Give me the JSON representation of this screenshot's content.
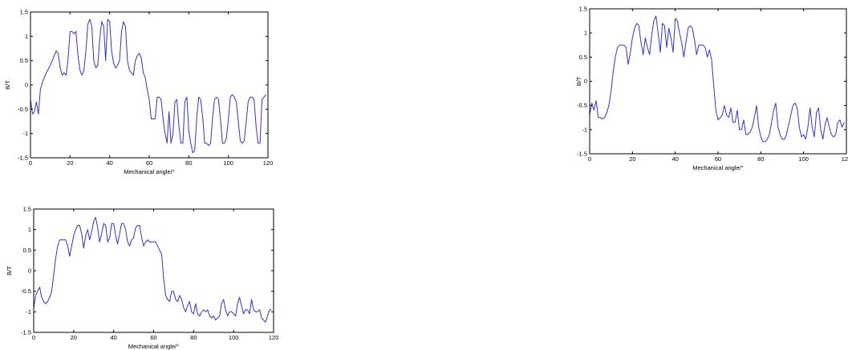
{
  "chart_data": [
    {
      "type": "line",
      "xlabel": "Mechanical angle/°",
      "ylabel": "B/T",
      "xlim": [
        0,
        120
      ],
      "ylim": [
        -1.5,
        1.5
      ],
      "xticks": [
        0,
        20,
        40,
        60,
        80,
        100,
        120
      ],
      "yticks": [
        -1.5,
        -1,
        -0.5,
        0,
        0.5,
        1,
        1.5
      ],
      "grid": false,
      "color": "#3333cc",
      "series": [
        {
          "x": [
            0,
            1,
            2,
            3,
            4,
            5,
            6,
            7,
            8,
            10,
            12,
            13,
            14,
            15,
            16,
            17,
            18,
            19,
            20,
            21,
            22,
            23,
            24,
            25,
            26,
            27,
            28,
            29,
            30,
            31,
            32,
            33,
            34,
            35,
            36,
            37,
            38,
            39,
            40,
            41,
            42,
            43,
            44,
            45,
            46,
            47,
            48,
            49,
            50,
            51,
            52,
            53,
            54,
            55,
            56,
            57,
            58,
            59,
            60,
            61,
            62,
            63,
            64,
            65,
            66,
            67,
            68,
            69,
            70,
            71,
            72,
            73,
            74,
            75,
            76,
            77,
            78,
            79,
            80,
            81,
            82,
            83,
            84,
            85,
            86,
            87,
            88,
            89,
            90,
            91,
            92,
            93,
            94,
            95,
            96,
            97,
            98,
            99,
            100,
            101,
            102,
            103,
            104,
            105,
            106,
            107,
            108,
            109,
            110,
            111,
            112,
            113,
            114,
            115,
            116,
            117,
            118,
            119
          ],
          "y": [
            -0.3,
            -0.6,
            -0.55,
            -0.35,
            -0.6,
            -0.1,
            0.05,
            0.15,
            0.25,
            0.4,
            0.6,
            0.7,
            0.65,
            0.35,
            0.2,
            0.25,
            0.2,
            0.55,
            1.1,
            1.1,
            1.05,
            1.1,
            0.6,
            0.3,
            0.2,
            0.3,
            0.7,
            1.25,
            1.35,
            1.2,
            0.5,
            0.35,
            0.4,
            0.95,
            1.3,
            1.2,
            0.5,
            1.35,
            1.3,
            0.7,
            0.45,
            0.35,
            0.4,
            0.5,
            1.1,
            1.3,
            1.2,
            0.5,
            0.3,
            0.25,
            0.2,
            0.5,
            0.6,
            0.65,
            0.55,
            0.25,
            0.15,
            -0.1,
            -0.3,
            -0.7,
            -0.7,
            -0.7,
            -0.25,
            -0.25,
            -0.3,
            -0.7,
            -1.0,
            -1.2,
            -0.55,
            -1.2,
            -1.0,
            -0.35,
            -0.3,
            -0.85,
            -1.2,
            -1.2,
            -0.35,
            -0.25,
            -0.95,
            -1.2,
            -1.4,
            -1.35,
            -0.7,
            -0.25,
            -0.3,
            -0.65,
            -1.2,
            -1.2,
            -1.25,
            -1.2,
            -0.7,
            -0.3,
            -0.25,
            -0.3,
            -0.7,
            -1.2,
            -1.2,
            -1.1,
            -0.7,
            -0.25,
            -0.2,
            -0.25,
            -0.35,
            -0.75,
            -1.15,
            -1.2,
            -1.15,
            -0.75,
            -0.35,
            -0.25,
            -0.25,
            -0.3,
            -0.85,
            -1.2,
            -1.2,
            -0.3,
            -0.25,
            -0.2
          ]
        }
      ]
    },
    {
      "type": "line",
      "xlabel": "Mechanical angle/°",
      "ylabel": "B/T",
      "xlim": [
        0,
        120
      ],
      "ylim": [
        -1.5,
        1.5
      ],
      "xticks": [
        0,
        20,
        40,
        60,
        80,
        100,
        120
      ],
      "yticks": [
        -1.5,
        -1,
        -0.5,
        0,
        0.5,
        1,
        1.5
      ],
      "grid": false,
      "color": "#3333cc",
      "series": [
        {
          "x": [
            0,
            1,
            2,
            3,
            4,
            5,
            6,
            7,
            8,
            9,
            10,
            11,
            12,
            13,
            14,
            15,
            16,
            17,
            18,
            19,
            20,
            21,
            22,
            23,
            24,
            25,
            26,
            27,
            28,
            29,
            30,
            31,
            32,
            33,
            34,
            35,
            36,
            37,
            38,
            39,
            40,
            41,
            42,
            43,
            44,
            45,
            46,
            47,
            48,
            49,
            50,
            51,
            52,
            53,
            54,
            55,
            56,
            57,
            58,
            59,
            60,
            61,
            62,
            63,
            64,
            65,
            66,
            67,
            68,
            69,
            70,
            71,
            72,
            73,
            74,
            75,
            76,
            77,
            78,
            79,
            80,
            81,
            82,
            83,
            84,
            85,
            86,
            87,
            88,
            89,
            90,
            91,
            92,
            93,
            94,
            95,
            96,
            97,
            98,
            99,
            100,
            101,
            102,
            103,
            104,
            105,
            106,
            107,
            108,
            109,
            110,
            111,
            112,
            113,
            114,
            115,
            116,
            117,
            118,
            119
          ],
          "y": [
            -0.7,
            -0.45,
            -0.6,
            -0.4,
            -0.75,
            -0.75,
            -0.78,
            -0.75,
            -0.65,
            -0.5,
            -0.2,
            0.2,
            0.5,
            0.7,
            0.75,
            0.75,
            0.75,
            0.7,
            0.35,
            0.6,
            0.9,
            1.1,
            1.2,
            1.15,
            0.8,
            0.55,
            0.9,
            0.7,
            0.55,
            0.95,
            1.25,
            1.35,
            1.0,
            0.6,
            1.2,
            1.15,
            0.7,
            1.1,
            0.9,
            0.6,
            1.3,
            1.25,
            1.0,
            0.8,
            0.5,
            0.8,
            1.1,
            1.15,
            1.1,
            0.85,
            0.55,
            0.75,
            0.75,
            0.75,
            0.7,
            0.5,
            0.65,
            0.45,
            -0.1,
            -0.6,
            -0.8,
            -0.75,
            -0.7,
            -0.5,
            -0.7,
            -0.75,
            -0.55,
            -0.85,
            -0.85,
            -0.6,
            -1.0,
            -1.0,
            -0.8,
            -1.1,
            -1.1,
            -1.05,
            -0.95,
            -0.75,
            -0.5,
            -0.95,
            -1.15,
            -1.25,
            -1.25,
            -1.2,
            -1.1,
            -0.85,
            -0.6,
            -0.45,
            -0.95,
            -1.1,
            -1.2,
            -1.2,
            -1.1,
            -0.9,
            -0.7,
            -0.5,
            -0.45,
            -0.55,
            -0.95,
            -1.15,
            -1.1,
            -1.2,
            -0.95,
            -0.55,
            -0.95,
            -1.15,
            -0.65,
            -0.55,
            -1.0,
            -1.2,
            -0.9,
            -0.75,
            -0.95,
            -1.1,
            -1.15,
            -1.1,
            -0.85,
            -0.8,
            -0.95,
            -0.85
          ]
        }
      ]
    },
    {
      "type": "line",
      "xlabel": "Mechanical angle/°",
      "ylabel": "B/T",
      "xlim": [
        0,
        120
      ],
      "ylim": [
        -1.5,
        1.5
      ],
      "xticks": [
        0,
        20,
        40,
        60,
        80,
        100,
        120
      ],
      "yticks": [
        -1.5,
        -1,
        -0.5,
        0,
        0.5,
        1,
        1.5
      ],
      "grid": false,
      "color": "#3333cc",
      "series": [
        {
          "x": [
            0,
            1,
            2,
            3,
            4,
            5,
            6,
            7,
            8,
            9,
            10,
            11,
            12,
            13,
            14,
            15,
            16,
            17,
            18,
            19,
            20,
            21,
            22,
            23,
            24,
            25,
            26,
            27,
            28,
            29,
            30,
            31,
            32,
            33,
            34,
            35,
            36,
            37,
            38,
            39,
            40,
            41,
            42,
            43,
            44,
            45,
            46,
            47,
            48,
            49,
            50,
            51,
            52,
            53,
            54,
            55,
            56,
            57,
            58,
            59,
            60,
            61,
            62,
            63,
            64,
            65,
            66,
            67,
            68,
            69,
            70,
            71,
            72,
            73,
            74,
            75,
            76,
            77,
            78,
            79,
            80,
            81,
            82,
            83,
            84,
            85,
            86,
            87,
            88,
            89,
            90,
            91,
            92,
            93,
            94,
            95,
            96,
            97,
            98,
            99,
            100,
            101,
            102,
            103,
            104,
            105,
            106,
            107,
            108,
            109,
            110,
            111,
            112,
            113,
            114,
            115,
            116,
            117,
            118,
            119
          ],
          "y": [
            -0.9,
            -0.6,
            -0.5,
            -0.4,
            -0.65,
            -0.75,
            -0.8,
            -0.75,
            -0.65,
            -0.5,
            -0.1,
            0.3,
            0.6,
            0.75,
            0.75,
            0.75,
            0.75,
            0.6,
            0.35,
            0.6,
            0.85,
            1.0,
            1.1,
            1.1,
            0.9,
            0.55,
            0.85,
            1.0,
            0.75,
            0.95,
            1.2,
            1.3,
            1.05,
            0.7,
            0.9,
            1.15,
            1.1,
            0.7,
            0.8,
            1.15,
            1.15,
            0.85,
            0.65,
            0.9,
            1.15,
            1.15,
            1.0,
            0.7,
            0.6,
            0.75,
            0.8,
            1.05,
            1.1,
            1.1,
            0.8,
            0.6,
            0.7,
            0.75,
            0.7,
            0.7,
            0.7,
            0.7,
            0.6,
            0.5,
            0.4,
            -0.2,
            -0.6,
            -0.7,
            -0.75,
            -0.5,
            -0.5,
            -0.7,
            -0.75,
            -0.6,
            -0.7,
            -0.9,
            -1.0,
            -0.85,
            -0.75,
            -1.0,
            -1.05,
            -0.8,
            -1.05,
            -1.1,
            -1.0,
            -0.95,
            -1.0,
            -0.95,
            -1.1,
            -1.15,
            -1.1,
            -1.2,
            -1.15,
            -1.1,
            -0.8,
            -0.7,
            -0.95,
            -1.1,
            -1.0,
            -1.0,
            -1.05,
            -1.1,
            -0.8,
            -0.65,
            -0.85,
            -1.05,
            -0.95,
            -0.95,
            -1.05,
            -0.7,
            -0.95,
            -1.0,
            -1.0,
            -0.95,
            -1.15,
            -1.2,
            -1.25,
            -1.1,
            -0.95,
            -0.95
          ]
        }
      ]
    }
  ]
}
